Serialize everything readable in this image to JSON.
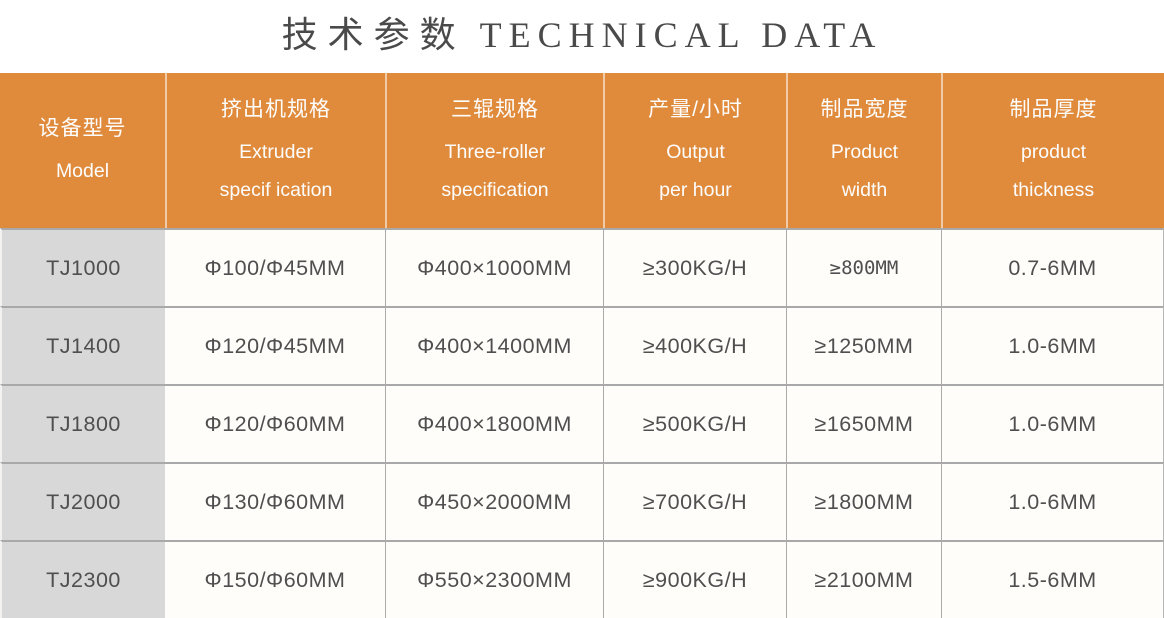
{
  "title": {
    "zh": "技术参数",
    "en": "TECHNICAL DATA"
  },
  "table": {
    "headers": [
      {
        "zh": "设备型号",
        "en": "Model"
      },
      {
        "zh": "挤出机规格",
        "en": "Extruder\nspecif ication"
      },
      {
        "zh": "三辊规格",
        "en": "Three-roller\nspecification"
      },
      {
        "zh": "产量/小时",
        "en": "Output\nper hour"
      },
      {
        "zh": "制品宽度",
        "en": "Product\nwidth"
      },
      {
        "zh": "制品厚度",
        "en": "product\nthickness"
      }
    ],
    "rows": [
      {
        "model": "TJ1000",
        "extruder": "Φ100/Φ45MM",
        "roller": "Φ400×1000MM",
        "output": "≥300KG/H",
        "width": "≥800MM",
        "thickness": "0.7-6MM"
      },
      {
        "model": "TJ1400",
        "extruder": "Φ120/Φ45MM",
        "roller": "Φ400×1400MM",
        "output": "≥400KG/H",
        "width": "≥1250MM",
        "thickness": "1.0-6MM"
      },
      {
        "model": "TJ1800",
        "extruder": "Φ120/Φ60MM",
        "roller": "Φ400×1800MM",
        "output": "≥500KG/H",
        "width": "≥1650MM",
        "thickness": "1.0-6MM"
      },
      {
        "model": "TJ2000",
        "extruder": "Φ130/Φ60MM",
        "roller": "Φ450×2000MM",
        "output": "≥700KG/H",
        "width": "≥1800MM",
        "thickness": "1.0-6MM"
      },
      {
        "model": "TJ2300",
        "extruder": "Φ150/Φ60MM",
        "roller": "Φ550×2300MM",
        "output": "≥900KG/H",
        "width": "≥2100MM",
        "thickness": "1.5-6MM"
      }
    ]
  },
  "colors": {
    "header_bg": "#E08B3C",
    "model_column_bg": "#D8D8D8",
    "cell_bg": "#FFFDFA",
    "grid_line": "#A9A9A9",
    "header_text": "#FDFDFD",
    "body_text": "#4F4F4F",
    "title_text": "#4A4A4A"
  }
}
